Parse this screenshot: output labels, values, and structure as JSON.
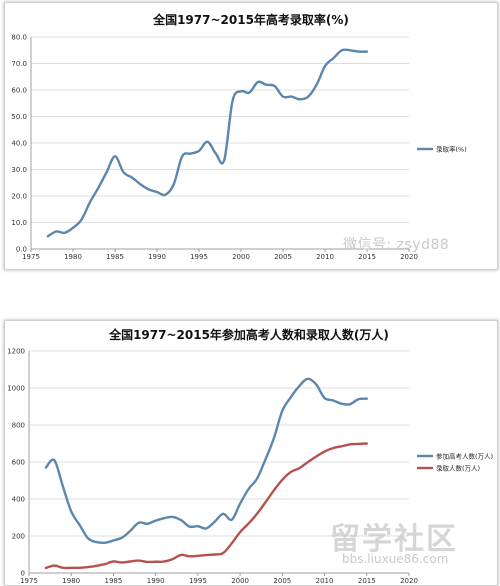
{
  "chart_data": [
    {
      "type": "line",
      "title": "全国1977~2015年高考录取率(%)",
      "xlim": [
        1975,
        2020
      ],
      "x_ticks": [
        "1975",
        "1980",
        "1985",
        "1990",
        "1995",
        "2000",
        "2005",
        "2010",
        "2015",
        "2020"
      ],
      "ylim": [
        0,
        80
      ],
      "y_ticks": [
        "0.0",
        "10.0",
        "20.0",
        "30.0",
        "40.0",
        "50.0",
        "60.0",
        "70.0",
        "80.0"
      ],
      "grid": "horizontal",
      "legend_position": "right",
      "series": [
        {
          "name": "录取率(%)",
          "color": "#5b86ad",
          "x": [
            1977,
            1978,
            1979,
            1980,
            1981,
            1982,
            1983,
            1984,
            1985,
            1986,
            1987,
            1988,
            1989,
            1990,
            1991,
            1992,
            1993,
            1994,
            1995,
            1996,
            1997,
            1998,
            1999,
            2000,
            2001,
            2002,
            2003,
            2004,
            2005,
            2006,
            2007,
            2008,
            2009,
            2010,
            2011,
            2012,
            2013,
            2014,
            2015
          ],
          "values": [
            4.8,
            6.6,
            6.1,
            8.0,
            11.0,
            17.5,
            23.0,
            29.0,
            35.0,
            29.0,
            27.0,
            24.5,
            22.5,
            21.5,
            20.5,
            24.5,
            35.0,
            36.0,
            37.0,
            40.5,
            36.0,
            33.5,
            56.0,
            59.5,
            59.0,
            63.0,
            62.0,
            61.5,
            57.5,
            57.5,
            56.5,
            57.5,
            62.0,
            69.0,
            72.0,
            75.0,
            75.0,
            74.5,
            74.5
          ]
        }
      ]
    },
    {
      "type": "line",
      "title": "全国1977~2015年参加高考人数和录取人数(万人)",
      "xlim": [
        1975,
        2020
      ],
      "x_ticks": [
        "1975",
        "1980",
        "1985",
        "1990",
        "1995",
        "2000",
        "2005",
        "2010",
        "2015",
        "2020"
      ],
      "ylim": [
        0,
        1200
      ],
      "y_ticks": [
        "0",
        "200",
        "400",
        "600",
        "800",
        "1000",
        "1200"
      ],
      "grid": "horizontal",
      "legend_position": "right",
      "series": [
        {
          "name": "参加高考人数(万人)",
          "color": "#5b86ad",
          "x": [
            1977,
            1978,
            1979,
            1980,
            1981,
            1982,
            1983,
            1984,
            1985,
            1986,
            1987,
            1988,
            1989,
            1990,
            1991,
            1992,
            1993,
            1994,
            1995,
            1996,
            1997,
            1998,
            1999,
            2000,
            2001,
            2002,
            2003,
            2004,
            2005,
            2006,
            2007,
            2008,
            2009,
            2010,
            2011,
            2012,
            2013,
            2014,
            2015
          ],
          "values": [
            570,
            610,
            470,
            333,
            259,
            187,
            167,
            164,
            176,
            191,
            228,
            272,
            266,
            283,
            296,
            303,
            286,
            251,
            253,
            241,
            278,
            320,
            288,
            375,
            454,
            510,
            613,
            729,
            877,
            950,
            1010,
            1050,
            1020,
            946,
            933,
            915,
            912,
            939,
            942
          ]
        },
        {
          "name": "录取人数(万人)",
          "color": "#b5524d",
          "x": [
            1977,
            1978,
            1979,
            1980,
            1981,
            1982,
            1983,
            1984,
            1985,
            1986,
            1987,
            1988,
            1989,
            1990,
            1991,
            1992,
            1993,
            1994,
            1995,
            1996,
            1997,
            1998,
            1999,
            2000,
            2001,
            2002,
            2003,
            2004,
            2005,
            2006,
            2007,
            2008,
            2009,
            2010,
            2011,
            2012,
            2013,
            2014,
            2015
          ],
          "values": [
            27,
            40,
            28,
            28,
            28,
            32,
            39,
            48,
            62,
            57,
            62,
            67,
            60,
            61,
            62,
            75,
            98,
            90,
            93,
            97,
            100,
            108,
            160,
            221,
            268,
            320,
            382,
            447,
            504,
            546,
            566,
            599,
            629,
            657,
            675,
            685,
            695,
            698,
            700
          ]
        }
      ]
    }
  ],
  "watermarks": {
    "top": "微信号: zsyd88",
    "bottom_main": "留学社区",
    "bottom_url": "bbs.liuxue86.com"
  }
}
